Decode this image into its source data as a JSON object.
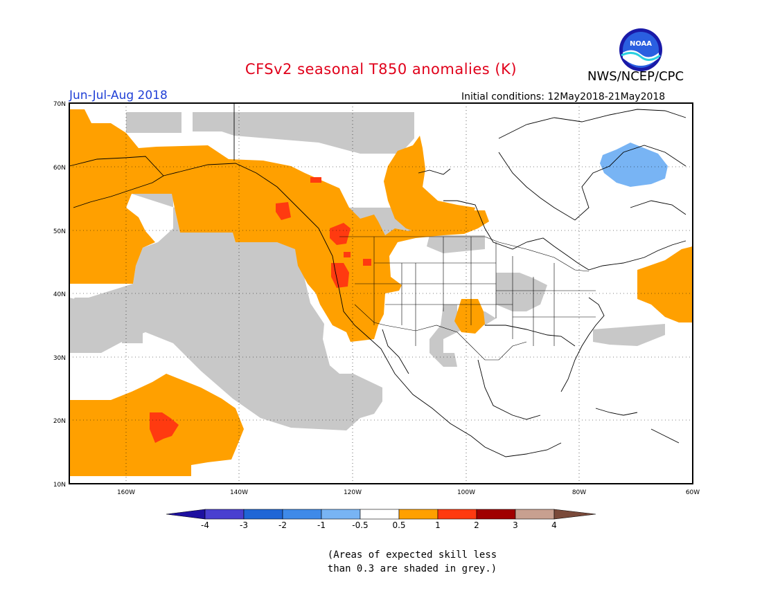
{
  "title": "CFSv2 seasonal T850 anomalies (K)",
  "agency": "NWS/NCEP/CPC",
  "logo_text": "NOAA",
  "season": "Jun-Jul-Aug 2018",
  "initial_conditions": "Initial conditions: 12May2018-21May2018",
  "map": {
    "lon_range": [
      -172,
      -60
    ],
    "lat_range": [
      10,
      70
    ],
    "lat_labels": [
      "70N",
      "60N",
      "50N",
      "40N",
      "30N",
      "20N",
      "10N"
    ],
    "lon_labels": [
      "160W",
      "140W",
      "120W",
      "100W",
      "80W",
      "60W"
    ]
  },
  "colorbar": {
    "labels": [
      "-4",
      "-3",
      "-2",
      "-1",
      "-0.5",
      "0.5",
      "1",
      "2",
      "3",
      "4"
    ],
    "colors": [
      "#1e10a0",
      "#4a3fd0",
      "#1f66d6",
      "#3f8ae8",
      "#78b4f4",
      "#ffffff",
      "#ffa000",
      "#ff3a10",
      "#a00000",
      "#c8a090",
      "#7a4a3a"
    ]
  },
  "anomaly_colors": {
    "grey": "#c8c8c8",
    "orange": "#ffa000",
    "red": "#ff3a10",
    "blue": "#78b4f4"
  },
  "note": {
    "line1": "(Areas of expected skill less",
    "line2": "than 0.3 are shaded in grey.)"
  }
}
